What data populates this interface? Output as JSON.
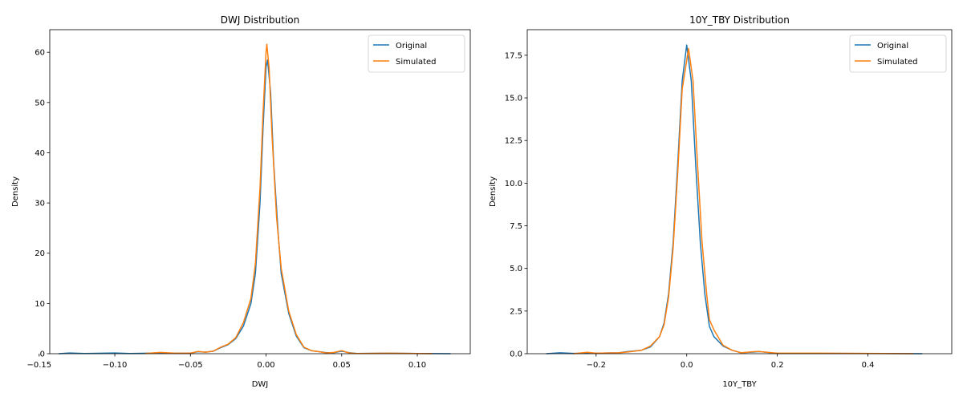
{
  "chart_data": [
    {
      "type": "line",
      "title": "DWJ Distribution",
      "xlabel": "DWJ",
      "ylabel": "Density",
      "xlim": [
        -0.143,
        0.135
      ],
      "ylim": [
        0,
        64.5
      ],
      "xticks": [
        -0.15,
        -0.1,
        -0.05,
        0.0,
        0.05,
        0.1
      ],
      "xtick_labels": [
        "−0.15",
        "−0.10",
        "−0.05",
        "0.00",
        "0.05",
        "0.10"
      ],
      "yticks": [
        0,
        10,
        20,
        30,
        40,
        50,
        60
      ],
      "ytick_labels": [
        "0",
        "10",
        "20",
        "30",
        "40",
        "50",
        "60"
      ],
      "legend": "top-right",
      "series": [
        {
          "name": "Original",
          "color": "#1f77b4",
          "x": [
            -0.137,
            -0.13,
            -0.12,
            -0.1,
            -0.09,
            -0.07,
            -0.06,
            -0.05,
            -0.045,
            -0.04,
            -0.035,
            -0.03,
            -0.025,
            -0.02,
            -0.015,
            -0.01,
            -0.007,
            -0.004,
            -0.002,
            0,
            0.001,
            0.003,
            0.005,
            0.008,
            0.01,
            0.015,
            0.02,
            0.025,
            0.03,
            0.035,
            0.04,
            0.045,
            0.05,
            0.055,
            0.06,
            0.08,
            0.1,
            0.122
          ],
          "y": [
            0,
            0.15,
            0.05,
            0.15,
            0.05,
            0.15,
            0.1,
            0.1,
            0.4,
            0.3,
            0.5,
            1.2,
            1.8,
            3.0,
            5.5,
            10,
            16,
            30,
            45,
            57,
            58.5,
            52,
            38,
            24,
            16,
            8,
            3.5,
            1.2,
            0.6,
            0.4,
            0.2,
            0.2,
            0.5,
            0.2,
            0.05,
            0.1,
            0.05,
            0
          ]
        },
        {
          "name": "Simulated",
          "color": "#ff7f0e",
          "x": [
            -0.08,
            -0.07,
            -0.06,
            -0.05,
            -0.045,
            -0.04,
            -0.035,
            -0.03,
            -0.025,
            -0.02,
            -0.015,
            -0.01,
            -0.007,
            -0.004,
            -0.002,
            0,
            0.0005,
            0.002,
            0.004,
            0.007,
            0.01,
            0.015,
            0.02,
            0.025,
            0.03,
            0.035,
            0.04,
            0.045,
            0.05,
            0.055,
            0.06,
            0.08,
            0.1,
            0.11
          ],
          "y": [
            0.05,
            0.25,
            0.1,
            0.1,
            0.45,
            0.3,
            0.5,
            1.3,
            1.9,
            3.2,
            6.2,
            11,
            18,
            33,
            48,
            60,
            61.6,
            57,
            43,
            27,
            17,
            8.5,
            3.8,
            1.3,
            0.6,
            0.4,
            0.15,
            0.25,
            0.6,
            0.15,
            0.05,
            0.1,
            0.05,
            0
          ]
        }
      ]
    },
    {
      "type": "line",
      "title": "10Y_TBY Distribution",
      "xlabel": "10Y_TBY",
      "ylabel": "Density",
      "xlim": [
        -0.352,
        0.585
      ],
      "ylim": [
        0,
        19.0
      ],
      "xticks": [
        -0.2,
        0.0,
        0.2,
        0.4
      ],
      "xtick_labels": [
        "−0.2",
        "0.0",
        "0.2",
        "0.4"
      ],
      "yticks": [
        0,
        2.5,
        5.0,
        7.5,
        10.0,
        12.5,
        15.0,
        17.5
      ],
      "ytick_labels": [
        "0.0",
        "2.5",
        "5.0",
        "7.5",
        "10.0",
        "12.5",
        "15.0",
        "17.5"
      ],
      "legend": "top-right",
      "series": [
        {
          "name": "Original",
          "color": "#1f77b4",
          "x": [
            -0.31,
            -0.28,
            -0.25,
            -0.2,
            -0.15,
            -0.13,
            -0.1,
            -0.08,
            -0.06,
            -0.05,
            -0.04,
            -0.03,
            -0.02,
            -0.01,
            0,
            0.01,
            0.02,
            0.03,
            0.04,
            0.05,
            0.06,
            0.08,
            0.1,
            0.12,
            0.15,
            0.16,
            0.2,
            0.3,
            0.4,
            0.52
          ],
          "y": [
            0,
            0.05,
            0.02,
            0.03,
            0.05,
            0.12,
            0.2,
            0.4,
            1.0,
            1.8,
            3.5,
            6.5,
            11,
            16,
            18.1,
            16,
            11,
            6.5,
            3.5,
            1.6,
            1.0,
            0.45,
            0.2,
            0.05,
            0.1,
            0.12,
            0.02,
            0.02,
            0.01,
            0
          ]
        },
        {
          "name": "Simulated",
          "color": "#ff7f0e",
          "x": [
            -0.25,
            -0.22,
            -0.2,
            -0.15,
            -0.13,
            -0.1,
            -0.08,
            -0.06,
            -0.05,
            -0.04,
            -0.03,
            -0.02,
            -0.01,
            0.004,
            0.014,
            0.024,
            0.034,
            0.044,
            0.05,
            0.06,
            0.08,
            0.1,
            0.12,
            0.15,
            0.16,
            0.2,
            0.3,
            0.4,
            0.5
          ],
          "y": [
            0,
            0.08,
            0.03,
            0.05,
            0.1,
            0.2,
            0.45,
            1.0,
            1.7,
            3.3,
            6.2,
            10.5,
            15.5,
            17.9,
            16,
            11,
            6.5,
            3.5,
            2.0,
            1.4,
            0.5,
            0.2,
            0.05,
            0.12,
            0.12,
            0.03,
            0.03,
            0.02,
            0
          ]
        }
      ]
    }
  ]
}
